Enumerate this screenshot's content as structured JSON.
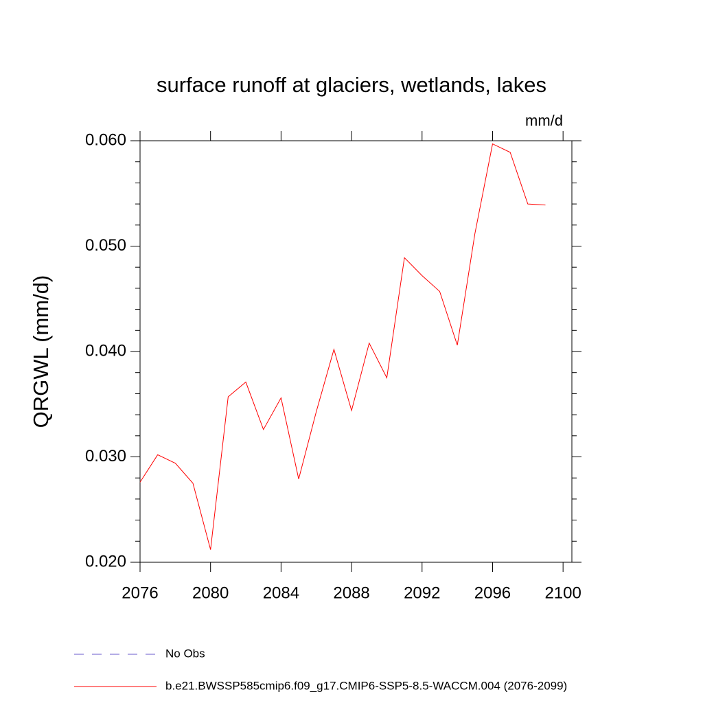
{
  "chart_data": {
    "type": "line",
    "title": "surface runoff at glaciers, wetlands, lakes",
    "units": "mm/d",
    "ylabel": "QRGWL  (mm/d)",
    "x": [
      2076,
      2077,
      2078,
      2079,
      2080,
      2081,
      2082,
      2083,
      2084,
      2085,
      2086,
      2087,
      2088,
      2089,
      2090,
      2091,
      2092,
      2093,
      2094,
      2095,
      2096,
      2097,
      2098,
      2099
    ],
    "series": [
      {
        "name": "No Obs",
        "color": "#6a5acd",
        "dashed": true,
        "values": [
          null,
          null,
          null,
          null,
          null,
          null,
          null,
          null,
          null,
          null,
          null,
          null,
          null,
          null,
          null,
          null,
          null,
          null,
          null,
          null,
          null,
          null,
          null,
          null
        ]
      },
      {
        "name": "b.e21.BWSSP585cmip6.f09_g17.CMIP6-SSP5-8.5-WACCM.004 (2076-2099)",
        "color": "#ff0000",
        "dashed": false,
        "values": [
          0.0276,
          0.0302,
          0.0294,
          0.0275,
          0.0212,
          0.0357,
          0.0371,
          0.0326,
          0.0356,
          0.0279,
          0.0343,
          0.0402,
          0.0344,
          0.0408,
          0.0375,
          0.0489,
          0.0472,
          0.0457,
          0.0406,
          0.0512,
          0.0597,
          0.0589,
          0.054,
          0.0539
        ]
      }
    ],
    "xlim": [
      2076,
      2100.5
    ],
    "xticks": [
      2076,
      2080,
      2084,
      2088,
      2092,
      2096,
      2100
    ],
    "ylim": [
      0.02,
      0.06
    ],
    "yticks": [
      {
        "value": 0.02,
        "label": "0.020"
      },
      {
        "value": 0.03,
        "label": "0.030"
      },
      {
        "value": 0.04,
        "label": "0.040"
      },
      {
        "value": 0.05,
        "label": "0.050"
      },
      {
        "value": 0.06,
        "label": "0.060"
      }
    ],
    "grid": false
  }
}
